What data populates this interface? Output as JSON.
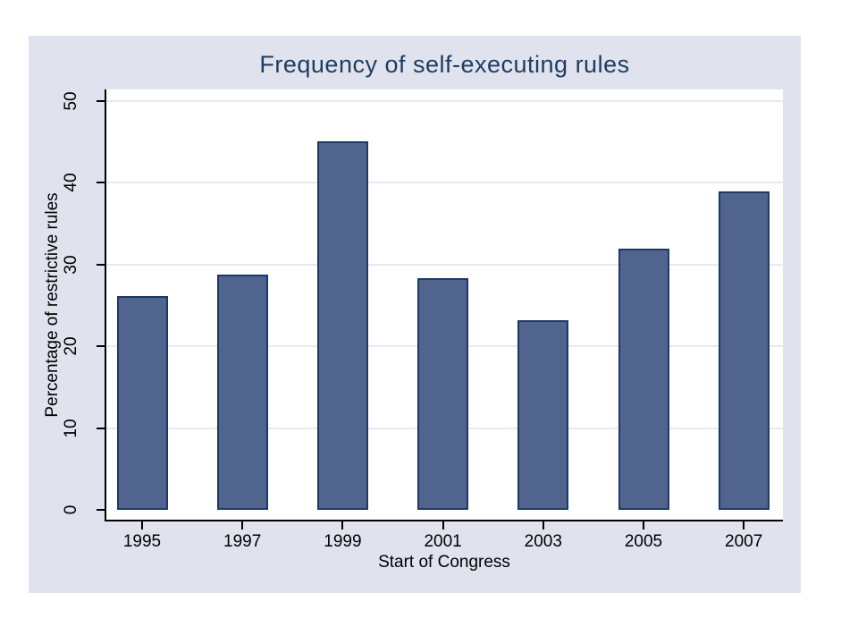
{
  "chart_data": {
    "type": "bar",
    "title": "Frequency of self-executing rules",
    "xlabel": "Start of Congress",
    "ylabel": "Percentage of restrictive rules",
    "categories": [
      "1995",
      "1997",
      "1999",
      "2001",
      "2003",
      "2005",
      "2007"
    ],
    "values": [
      26.2,
      28.8,
      45.1,
      28.3,
      23.2,
      32,
      39
    ],
    "ylim": [
      0,
      50
    ],
    "yticks": [
      0,
      10,
      20,
      30,
      40,
      50
    ],
    "grid": true,
    "legend": "none",
    "colors": {
      "bar_fill": "#51648e",
      "bar_border": "#1c3a64",
      "canvas_bg": "#e0e3ee",
      "plot_bg": "#ffffff",
      "gridline": "#e7e9f3",
      "axis_line": "#000000",
      "title": "#1f3c61",
      "tick_text": "#000000"
    }
  }
}
